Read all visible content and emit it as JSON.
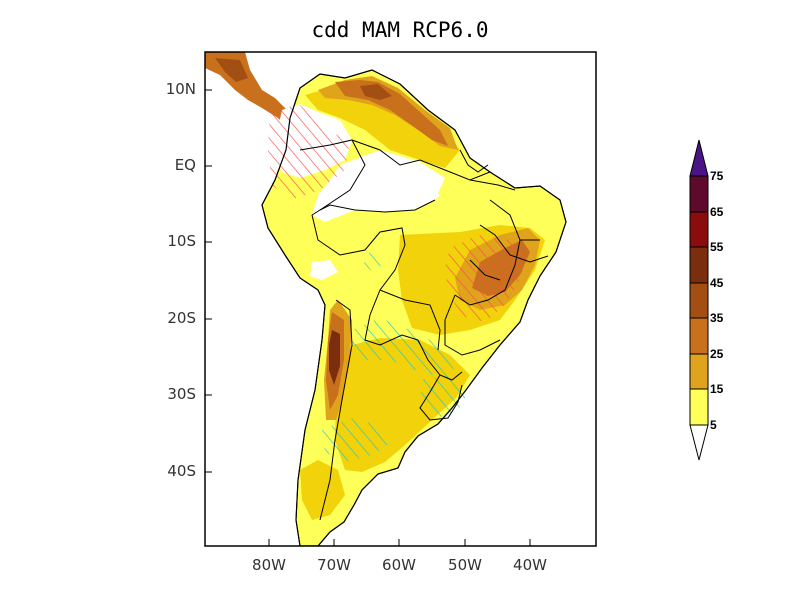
{
  "title": "cdd MAM RCP6.0",
  "lat_labels": [
    "10N",
    "EQ",
    "10S",
    "20S",
    "30S",
    "40S"
  ],
  "lon_labels": [
    "80W",
    "70W",
    "60W",
    "50W",
    "40W"
  ],
  "colorbar": {
    "labels": [
      "5",
      "15",
      "25",
      "35",
      "45",
      "55",
      "65",
      "75"
    ],
    "colors": [
      "#ffff5a",
      "#f2d20a",
      "#e0a31c",
      "#c8701c",
      "#a34f14",
      "#7a2e0e",
      "#8a0c0c",
      "#5e0a2c",
      "#4b1486"
    ]
  },
  "hatch_colors": {
    "positive": "#ff4c4c",
    "negative": "#1ec8c8"
  }
}
